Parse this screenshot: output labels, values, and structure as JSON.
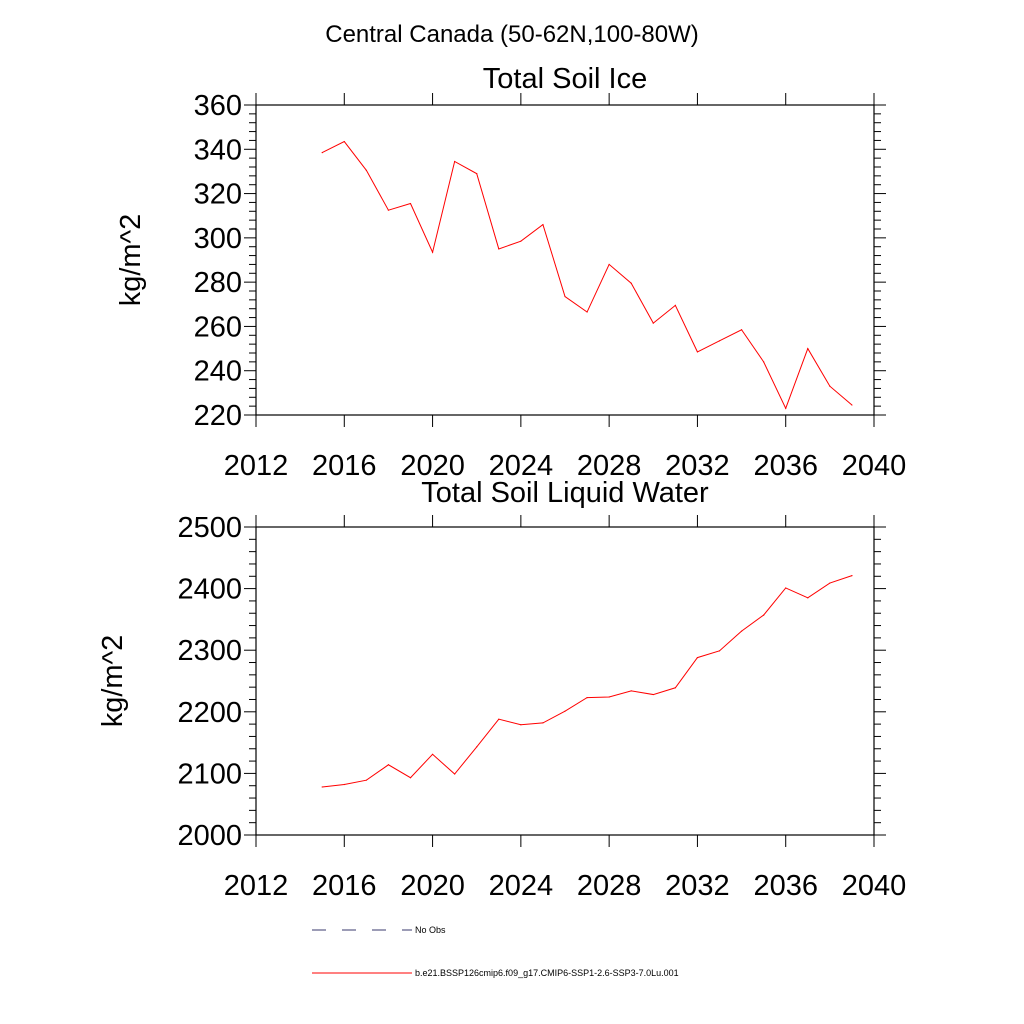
{
  "suptitle": "Central Canada (50-62N,100-80W)",
  "chart_data": [
    {
      "type": "line",
      "title": "Total Soil Ice",
      "xlabel": "",
      "ylabel": "kg/m^2",
      "xlim": [
        2012,
        2040
      ],
      "ylim": [
        220,
        360
      ],
      "xticks": [
        2012,
        2016,
        2020,
        2024,
        2028,
        2032,
        2036,
        2040
      ],
      "yticks": [
        220,
        240,
        260,
        280,
        300,
        320,
        340,
        360
      ],
      "grid": false,
      "series": [
        {
          "name": "b.e21.BSSP126cmip6.f09_g17.CMIP6-SSP1-2.6-SSP3-7.0Lu.001",
          "color": "#ff0000",
          "x": [
            2015,
            2016,
            2017,
            2018,
            2019,
            2020,
            2021,
            2022,
            2023,
            2024,
            2025,
            2026,
            2027,
            2028,
            2029,
            2030,
            2031,
            2032,
            2033,
            2034,
            2035,
            2036,
            2037,
            2038,
            2039
          ],
          "y": [
            338.5,
            343.5,
            330.5,
            312.5,
            315.5,
            293.5,
            334.5,
            329.0,
            295.0,
            298.5,
            306.0,
            273.5,
            266.5,
            288.0,
            279.5,
            261.5,
            269.5,
            248.5,
            253.5,
            258.5,
            244.0,
            223.0,
            250.0,
            233.0,
            224.5
          ]
        }
      ]
    },
    {
      "type": "line",
      "title": "Total Soil Liquid Water",
      "xlabel": "",
      "ylabel": "kg/m^2",
      "xlim": [
        2012,
        2040
      ],
      "ylim": [
        2000,
        2500
      ],
      "xticks": [
        2012,
        2016,
        2020,
        2024,
        2028,
        2032,
        2036,
        2040
      ],
      "yticks": [
        2000,
        2100,
        2200,
        2300,
        2400,
        2500
      ],
      "grid": false,
      "series": [
        {
          "name": "b.e21.BSSP126cmip6.f09_g17.CMIP6-SSP1-2.6-SSP3-7.0Lu.001",
          "color": "#ff0000",
          "x": [
            2015,
            2016,
            2017,
            2018,
            2019,
            2020,
            2021,
            2022,
            2023,
            2024,
            2025,
            2026,
            2027,
            2028,
            2029,
            2030,
            2031,
            2032,
            2033,
            2034,
            2035,
            2036,
            2037,
            2038,
            2039
          ],
          "y": [
            2078,
            2082,
            2089,
            2114,
            2093,
            2131,
            2099,
            2143,
            2188,
            2179,
            2182,
            2201,
            2223,
            2224,
            2234,
            2228,
            2239,
            2288,
            2299,
            2331,
            2357,
            2401,
            2385,
            2409,
            2421
          ]
        }
      ]
    }
  ],
  "legend": {
    "placement": "bottom",
    "items": [
      {
        "label": "No Obs",
        "style": "dashed",
        "color": "#3a3a6e"
      },
      {
        "label": "b.e21.BSSP126cmip6.f09_g17.CMIP6-SSP1-2.6-SSP3-7.0Lu.001",
        "style": "solid",
        "color": "#ff0000"
      }
    ]
  }
}
